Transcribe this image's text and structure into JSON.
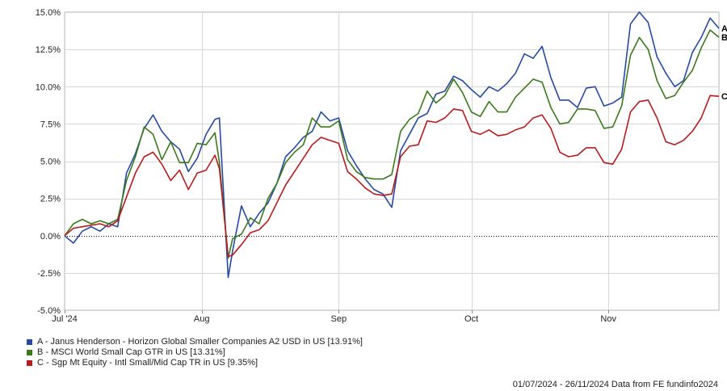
{
  "chart_data": {
    "type": "line",
    "y_tick_labels": [
      "15.0%",
      "12.5%",
      "10.0%",
      "7.5%",
      "5.0%",
      "2.5%",
      "0.0%",
      "-2.5%",
      "-5.0%"
    ],
    "y_ticks": [
      15,
      12.5,
      10,
      7.5,
      5,
      2.5,
      0,
      -2.5,
      -5
    ],
    "ylim": [
      -5,
      15
    ],
    "x_tick_labels": [
      "Jul '24",
      "Aug",
      "Sep",
      "Oct",
      "Nov"
    ],
    "x_ticks": [
      "2024-07-01",
      "2024-08-01",
      "2024-09-01",
      "2024-10-01",
      "2024-11-01"
    ],
    "xlim": [
      "2024-07-01",
      "2024-11-26"
    ],
    "zero_line": "dotted",
    "grid": true,
    "legend_position": "bottom-left",
    "series": [
      {
        "name": "A - Janus Henderson - Horizon Global Smaller Companies A2 USD in US [13.91%]",
        "end_label": "A",
        "color": "#2649a6",
        "points": [
          [
            "2024-07-01",
            0.0
          ],
          [
            "2024-07-03",
            -0.5
          ],
          [
            "2024-07-05",
            0.3
          ],
          [
            "2024-07-07",
            0.6
          ],
          [
            "2024-07-09",
            0.3
          ],
          [
            "2024-07-11",
            0.8
          ],
          [
            "2024-07-13",
            0.6
          ],
          [
            "2024-07-15",
            4.2
          ],
          [
            "2024-07-17",
            5.5
          ],
          [
            "2024-07-19",
            7.2
          ],
          [
            "2024-07-21",
            8.1
          ],
          [
            "2024-07-23",
            7.0
          ],
          [
            "2024-07-25",
            6.3
          ],
          [
            "2024-07-27",
            5.8
          ],
          [
            "2024-07-29",
            4.3
          ],
          [
            "2024-07-31",
            5.2
          ],
          [
            "2024-08-02",
            6.8
          ],
          [
            "2024-08-04",
            7.8
          ],
          [
            "2024-08-05",
            7.9
          ],
          [
            "2024-08-07",
            -2.8
          ],
          [
            "2024-08-08",
            -1.0
          ],
          [
            "2024-08-10",
            2.0
          ],
          [
            "2024-08-12",
            0.6
          ],
          [
            "2024-08-14",
            1.5
          ],
          [
            "2024-08-16",
            2.2
          ],
          [
            "2024-08-18",
            3.5
          ],
          [
            "2024-08-20",
            5.3
          ],
          [
            "2024-08-22",
            5.9
          ],
          [
            "2024-08-24",
            6.6
          ],
          [
            "2024-08-26",
            7.0
          ],
          [
            "2024-08-28",
            8.3
          ],
          [
            "2024-08-30",
            7.7
          ],
          [
            "2024-09-01",
            7.9
          ],
          [
            "2024-09-03",
            5.7
          ],
          [
            "2024-09-05",
            4.7
          ],
          [
            "2024-09-07",
            3.8
          ],
          [
            "2024-09-09",
            3.1
          ],
          [
            "2024-09-11",
            2.8
          ],
          [
            "2024-09-13",
            1.9
          ],
          [
            "2024-09-15",
            5.7
          ],
          [
            "2024-09-17",
            6.8
          ],
          [
            "2024-09-19",
            7.9
          ],
          [
            "2024-09-21",
            8.2
          ],
          [
            "2024-09-23",
            9.5
          ],
          [
            "2024-09-25",
            9.7
          ],
          [
            "2024-09-27",
            10.7
          ],
          [
            "2024-09-29",
            10.4
          ],
          [
            "2024-10-01",
            9.8
          ],
          [
            "2024-10-03",
            9.3
          ],
          [
            "2024-10-05",
            10.0
          ],
          [
            "2024-10-07",
            9.7
          ],
          [
            "2024-10-09",
            10.2
          ],
          [
            "2024-10-11",
            10.9
          ],
          [
            "2024-10-13",
            12.2
          ],
          [
            "2024-10-15",
            11.9
          ],
          [
            "2024-10-17",
            12.7
          ],
          [
            "2024-10-19",
            10.6
          ],
          [
            "2024-10-21",
            9.1
          ],
          [
            "2024-10-23",
            9.1
          ],
          [
            "2024-10-25",
            8.6
          ],
          [
            "2024-10-27",
            9.9
          ],
          [
            "2024-10-29",
            10.0
          ],
          [
            "2024-10-31",
            8.7
          ],
          [
            "2024-11-02",
            8.9
          ],
          [
            "2024-11-04",
            9.3
          ],
          [
            "2024-11-06",
            14.2
          ],
          [
            "2024-11-08",
            15.0
          ],
          [
            "2024-11-10",
            14.3
          ],
          [
            "2024-11-12",
            12.0
          ],
          [
            "2024-11-14",
            10.9
          ],
          [
            "2024-11-16",
            10.0
          ],
          [
            "2024-11-18",
            10.4
          ],
          [
            "2024-11-20",
            12.3
          ],
          [
            "2024-11-22",
            13.3
          ],
          [
            "2024-11-24",
            14.6
          ],
          [
            "2024-11-26",
            13.91
          ]
        ]
      },
      {
        "name": "B - MSCI World Small Cap GTR in US [13.31%]",
        "end_label": "B",
        "color": "#3b7a1c",
        "points": [
          [
            "2024-07-01",
            0.0
          ],
          [
            "2024-07-03",
            0.8
          ],
          [
            "2024-07-05",
            1.1
          ],
          [
            "2024-07-07",
            0.8
          ],
          [
            "2024-07-09",
            1.0
          ],
          [
            "2024-07-11",
            0.8
          ],
          [
            "2024-07-13",
            1.1
          ],
          [
            "2024-07-15",
            3.7
          ],
          [
            "2024-07-17",
            5.3
          ],
          [
            "2024-07-19",
            7.3
          ],
          [
            "2024-07-21",
            6.8
          ],
          [
            "2024-07-23",
            5.1
          ],
          [
            "2024-07-25",
            6.3
          ],
          [
            "2024-07-27",
            4.9
          ],
          [
            "2024-07-29",
            4.9
          ],
          [
            "2024-07-31",
            6.2
          ],
          [
            "2024-08-02",
            6.1
          ],
          [
            "2024-08-04",
            6.9
          ],
          [
            "2024-08-05",
            4.9
          ],
          [
            "2024-08-07",
            -1.5
          ],
          [
            "2024-08-08",
            -0.2
          ],
          [
            "2024-08-10",
            0.1
          ],
          [
            "2024-08-12",
            1.2
          ],
          [
            "2024-08-14",
            0.8
          ],
          [
            "2024-08-16",
            2.5
          ],
          [
            "2024-08-18",
            3.5
          ],
          [
            "2024-08-20",
            4.9
          ],
          [
            "2024-08-22",
            5.6
          ],
          [
            "2024-08-24",
            6.1
          ],
          [
            "2024-08-26",
            7.9
          ],
          [
            "2024-08-28",
            7.3
          ],
          [
            "2024-08-30",
            7.3
          ],
          [
            "2024-09-01",
            7.7
          ],
          [
            "2024-09-03",
            5.1
          ],
          [
            "2024-09-05",
            4.3
          ],
          [
            "2024-09-07",
            3.9
          ],
          [
            "2024-09-09",
            3.8
          ],
          [
            "2024-09-11",
            3.8
          ],
          [
            "2024-09-13",
            4.1
          ],
          [
            "2024-09-15",
            7.0
          ],
          [
            "2024-09-17",
            7.8
          ],
          [
            "2024-09-19",
            8.2
          ],
          [
            "2024-09-21",
            9.7
          ],
          [
            "2024-09-23",
            8.9
          ],
          [
            "2024-09-25",
            9.4
          ],
          [
            "2024-09-27",
            10.5
          ],
          [
            "2024-09-29",
            9.6
          ],
          [
            "2024-10-01",
            8.3
          ],
          [
            "2024-10-03",
            8.0
          ],
          [
            "2024-10-05",
            9.0
          ],
          [
            "2024-10-07",
            8.3
          ],
          [
            "2024-10-09",
            8.3
          ],
          [
            "2024-10-11",
            9.3
          ],
          [
            "2024-10-13",
            9.9
          ],
          [
            "2024-10-15",
            10.5
          ],
          [
            "2024-10-17",
            10.3
          ],
          [
            "2024-10-19",
            8.6
          ],
          [
            "2024-10-21",
            7.5
          ],
          [
            "2024-10-23",
            7.6
          ],
          [
            "2024-10-25",
            8.5
          ],
          [
            "2024-10-27",
            8.5
          ],
          [
            "2024-10-29",
            8.4
          ],
          [
            "2024-10-31",
            7.2
          ],
          [
            "2024-11-02",
            7.3
          ],
          [
            "2024-11-04",
            8.7
          ],
          [
            "2024-11-06",
            12.1
          ],
          [
            "2024-11-08",
            13.3
          ],
          [
            "2024-11-10",
            12.5
          ],
          [
            "2024-11-12",
            10.4
          ],
          [
            "2024-11-14",
            9.2
          ],
          [
            "2024-11-16",
            9.4
          ],
          [
            "2024-11-18",
            10.3
          ],
          [
            "2024-11-20",
            11.1
          ],
          [
            "2024-11-22",
            12.6
          ],
          [
            "2024-11-24",
            13.8
          ],
          [
            "2024-11-26",
            13.31
          ]
        ]
      },
      {
        "name": "C - Sgp Mt Equity - Intl Small/Mid Cap TR in US [9.35%]",
        "end_label": "C",
        "color": "#b71b1b",
        "points": [
          [
            "2024-07-01",
            0.0
          ],
          [
            "2024-07-03",
            0.5
          ],
          [
            "2024-07-05",
            0.6
          ],
          [
            "2024-07-07",
            0.7
          ],
          [
            "2024-07-09",
            0.8
          ],
          [
            "2024-07-11",
            0.6
          ],
          [
            "2024-07-13",
            1.0
          ],
          [
            "2024-07-15",
            2.6
          ],
          [
            "2024-07-17",
            4.2
          ],
          [
            "2024-07-19",
            5.3
          ],
          [
            "2024-07-21",
            5.6
          ],
          [
            "2024-07-23",
            4.8
          ],
          [
            "2024-07-25",
            3.7
          ],
          [
            "2024-07-27",
            4.4
          ],
          [
            "2024-07-29",
            3.1
          ],
          [
            "2024-07-31",
            4.2
          ],
          [
            "2024-08-02",
            4.4
          ],
          [
            "2024-08-04",
            5.4
          ],
          [
            "2024-08-05",
            4.5
          ],
          [
            "2024-08-07",
            -1.4
          ],
          [
            "2024-08-08",
            -1.3
          ],
          [
            "2024-08-10",
            -0.6
          ],
          [
            "2024-08-12",
            0.2
          ],
          [
            "2024-08-14",
            0.4
          ],
          [
            "2024-08-16",
            1.0
          ],
          [
            "2024-08-18",
            2.2
          ],
          [
            "2024-08-20",
            3.4
          ],
          [
            "2024-08-22",
            4.3
          ],
          [
            "2024-08-24",
            5.2
          ],
          [
            "2024-08-26",
            6.1
          ],
          [
            "2024-08-28",
            6.6
          ],
          [
            "2024-08-30",
            6.4
          ],
          [
            "2024-09-01",
            6.2
          ],
          [
            "2024-09-03",
            4.3
          ],
          [
            "2024-09-05",
            3.8
          ],
          [
            "2024-09-07",
            3.2
          ],
          [
            "2024-09-09",
            2.8
          ],
          [
            "2024-09-11",
            2.7
          ],
          [
            "2024-09-13",
            2.8
          ],
          [
            "2024-09-15",
            5.3
          ],
          [
            "2024-09-17",
            6.0
          ],
          [
            "2024-09-19",
            6.1
          ],
          [
            "2024-09-21",
            7.7
          ],
          [
            "2024-09-23",
            7.6
          ],
          [
            "2024-09-25",
            7.9
          ],
          [
            "2024-09-27",
            8.5
          ],
          [
            "2024-09-29",
            8.4
          ],
          [
            "2024-10-01",
            7.0
          ],
          [
            "2024-10-03",
            6.8
          ],
          [
            "2024-10-05",
            7.1
          ],
          [
            "2024-10-07",
            6.7
          ],
          [
            "2024-10-09",
            6.8
          ],
          [
            "2024-10-11",
            7.1
          ],
          [
            "2024-10-13",
            7.3
          ],
          [
            "2024-10-15",
            7.9
          ],
          [
            "2024-10-17",
            8.1
          ],
          [
            "2024-10-19",
            7.2
          ],
          [
            "2024-10-21",
            5.6
          ],
          [
            "2024-10-23",
            5.3
          ],
          [
            "2024-10-25",
            5.4
          ],
          [
            "2024-10-27",
            5.9
          ],
          [
            "2024-10-29",
            5.9
          ],
          [
            "2024-10-31",
            4.9
          ],
          [
            "2024-11-02",
            4.8
          ],
          [
            "2024-11-04",
            5.8
          ],
          [
            "2024-11-06",
            8.3
          ],
          [
            "2024-11-08",
            9.0
          ],
          [
            "2024-11-10",
            9.1
          ],
          [
            "2024-11-12",
            7.9
          ],
          [
            "2024-11-14",
            6.3
          ],
          [
            "2024-11-16",
            6.1
          ],
          [
            "2024-11-18",
            6.4
          ],
          [
            "2024-11-20",
            7.0
          ],
          [
            "2024-11-22",
            7.9
          ],
          [
            "2024-11-24",
            9.4
          ],
          [
            "2024-11-26",
            9.35
          ]
        ]
      }
    ]
  },
  "legend": {
    "items": [
      {
        "label": "A - Janus Henderson - Horizon Global Smaller Companies A2 USD in US [13.91%]",
        "color": "#2649a6"
      },
      {
        "label": "B - MSCI World Small Cap GTR in US [13.31%]",
        "color": "#3b7a1c"
      },
      {
        "label": "C - Sgp Mt Equity - Intl Small/Mid Cap TR in US [9.35%]",
        "color": "#b71b1b"
      }
    ]
  },
  "footer": {
    "text": "01/07/2024 - 26/11/2024 Data from FE fundinfo2024"
  }
}
